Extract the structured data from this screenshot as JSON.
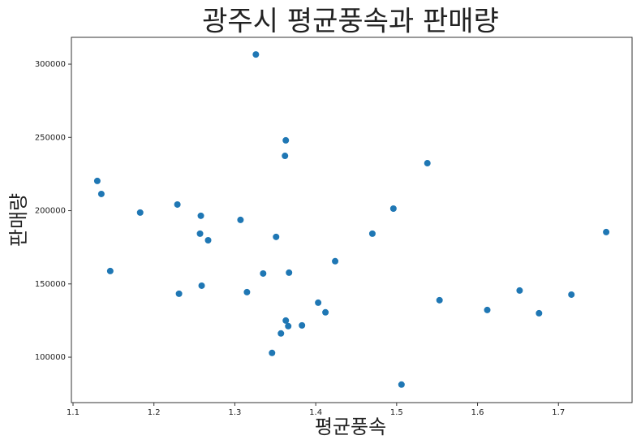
{
  "chart_data": {
    "type": "scatter",
    "title": "광주시 평균풍속과 판매량",
    "x_label": "평균풍속",
    "y_label": "판매량",
    "color": "#1f77b4",
    "x": [
      1.13,
      1.135,
      1.146,
      1.183,
      1.229,
      1.231,
      1.258,
      1.257,
      1.259,
      1.267,
      1.307,
      1.315,
      1.326,
      1.335,
      1.346,
      1.351,
      1.357,
      1.363,
      1.362,
      1.363,
      1.366,
      1.367,
      1.383,
      1.403,
      1.412,
      1.424,
      1.47,
      1.496,
      1.506,
      1.538,
      1.553,
      1.612,
      1.652,
      1.676,
      1.716,
      1.759
    ],
    "values": [
      220300,
      211400,
      158800,
      198700,
      204200,
      143300,
      196500,
      184300,
      148800,
      179800,
      193700,
      144400,
      306600,
      157100,
      102900,
      182100,
      116200,
      248000,
      237400,
      125000,
      121200,
      157700,
      121700,
      137200,
      130600,
      165500,
      184300,
      201400,
      81300,
      232400,
      138900,
      132200,
      145500,
      130000,
      142700,
      185400
    ],
    "xlim": [
      1.098,
      1.791
    ],
    "xticks": [
      1.1,
      1.2,
      1.3,
      1.4,
      1.5,
      1.6,
      1.7
    ],
    "ylim": [
      69000,
      318300
    ],
    "yticks": [
      100000,
      150000,
      200000,
      250000,
      300000
    ],
    "grid": false
  }
}
